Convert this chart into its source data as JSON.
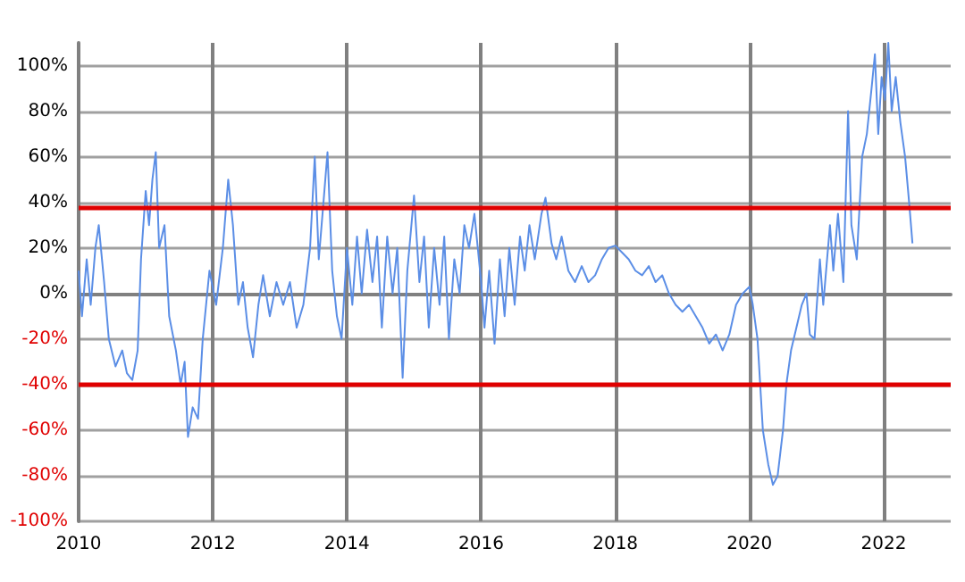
{
  "chart_data": {
    "type": "line",
    "xlim": [
      2010,
      2023
    ],
    "xticks": [
      2010,
      2012,
      2014,
      2016,
      2018,
      2020,
      2022
    ],
    "ylim": [
      -100,
      110
    ],
    "yticks": [
      {
        "value": -100,
        "label": "-100%"
      },
      {
        "value": -80,
        "label": "-80%"
      },
      {
        "value": -60,
        "label": "-60%"
      },
      {
        "value": -40,
        "label": "-40%"
      },
      {
        "value": -20,
        "label": "-20%"
      },
      {
        "value": 0,
        "label": "0%"
      },
      {
        "value": 20,
        "label": "20%"
      },
      {
        "value": 40,
        "label": "40%"
      },
      {
        "value": 60,
        "label": "60%"
      },
      {
        "value": 80,
        "label": "80%"
      },
      {
        "value": 100,
        "label": "100%"
      }
    ],
    "grid": true,
    "marker": "none",
    "ref_lines": [
      {
        "axis": "y",
        "value": 38,
        "color": "#e00000"
      },
      {
        "axis": "y",
        "value": -40,
        "color": "#e00000"
      }
    ],
    "series": [
      {
        "color": "#5b8ee6",
        "x": [
          2010.0,
          2010.05,
          2010.12,
          2010.18,
          2010.25,
          2010.3,
          2010.38,
          2010.45,
          2010.55,
          2010.65,
          2010.72,
          2010.8,
          2010.88,
          2010.93,
          2011.0,
          2011.05,
          2011.1,
          2011.15,
          2011.2,
          2011.28,
          2011.35,
          2011.45,
          2011.52,
          2011.58,
          2011.63,
          2011.7,
          2011.78,
          2011.85,
          2011.95,
          2012.05,
          2012.15,
          2012.23,
          2012.3,
          2012.38,
          2012.45,
          2012.52,
          2012.6,
          2012.68,
          2012.75,
          2012.85,
          2012.95,
          2013.05,
          2013.15,
          2013.25,
          2013.35,
          2013.45,
          2013.52,
          2013.58,
          2013.65,
          2013.71,
          2013.78,
          2013.85,
          2013.92,
          2014.0,
          2014.08,
          2014.15,
          2014.22,
          2014.3,
          2014.38,
          2014.45,
          2014.52,
          2014.6,
          2014.68,
          2014.75,
          2014.83,
          2014.9,
          2015.0,
          2015.08,
          2015.15,
          2015.22,
          2015.3,
          2015.38,
          2015.45,
          2015.52,
          2015.6,
          2015.68,
          2015.75,
          2015.82,
          2015.9,
          2016.0,
          2016.05,
          2016.12,
          2016.2,
          2016.28,
          2016.35,
          2016.42,
          2016.5,
          2016.58,
          2016.65,
          2016.72,
          2016.8,
          2016.9,
          2016.96,
          2017.05,
          2017.12,
          2017.2,
          2017.3,
          2017.4,
          2017.5,
          2017.6,
          2017.7,
          2017.8,
          2017.9,
          2018.0,
          2018.1,
          2018.2,
          2018.3,
          2018.4,
          2018.5,
          2018.6,
          2018.7,
          2018.8,
          2018.9,
          2019.0,
          2019.1,
          2019.2,
          2019.3,
          2019.4,
          2019.5,
          2019.6,
          2019.7,
          2019.8,
          2019.9,
          2020.0,
          2020.05,
          2020.12,
          2020.2,
          2020.28,
          2020.35,
          2020.42,
          2020.5,
          2020.55,
          2020.62,
          2020.7,
          2020.78,
          2020.85,
          2020.9,
          2020.97,
          2021.05,
          2021.1,
          2021.2,
          2021.25,
          2021.32,
          2021.4,
          2021.47,
          2021.52,
          2021.6,
          2021.68,
          2021.75,
          2021.82,
          2021.87,
          2021.92,
          2021.97,
          2022.02,
          2022.07,
          2022.12,
          2022.18,
          2022.25,
          2022.32,
          2022.38,
          2022.43
        ],
        "values": [
          10,
          -10,
          15,
          -5,
          20,
          30,
          5,
          -20,
          -32,
          -25,
          -35,
          -38,
          -25,
          15,
          45,
          30,
          50,
          62,
          20,
          30,
          -10,
          -25,
          -40,
          -30,
          -63,
          -50,
          -55,
          -20,
          10,
          -5,
          20,
          50,
          30,
          -5,
          5,
          -15,
          -28,
          -5,
          8,
          -10,
          5,
          -5,
          5,
          -15,
          -5,
          20,
          60,
          15,
          40,
          62,
          10,
          -10,
          -20,
          20,
          -5,
          25,
          0,
          28,
          5,
          25,
          -15,
          25,
          0,
          20,
          -37,
          10,
          43,
          5,
          25,
          -15,
          20,
          -5,
          25,
          -20,
          15,
          0,
          30,
          20,
          35,
          5,
          -15,
          10,
          -22,
          15,
          -10,
          20,
          -5,
          25,
          10,
          30,
          15,
          35,
          42,
          22,
          15,
          25,
          10,
          5,
          12,
          5,
          8,
          15,
          20,
          21,
          18,
          15,
          10,
          8,
          12,
          5,
          8,
          0,
          -5,
          -8,
          -5,
          -10,
          -15,
          -22,
          -18,
          -25,
          -18,
          -5,
          0,
          3,
          -5,
          -20,
          -60,
          -75,
          -84,
          -80,
          -60,
          -40,
          -25,
          -15,
          -5,
          0,
          -18,
          -20,
          15,
          -5,
          30,
          10,
          35,
          5,
          80,
          30,
          15,
          60,
          70,
          90,
          105,
          70,
          95,
          85,
          110,
          80,
          95,
          75,
          60,
          40,
          22
        ]
      }
    ]
  }
}
